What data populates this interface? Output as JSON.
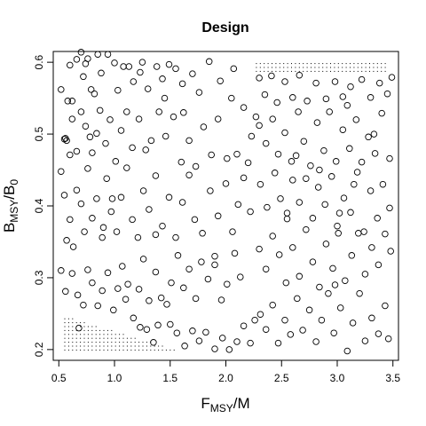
{
  "chart_data": {
    "type": "scatter",
    "title": "Design",
    "xlabel": {
      "main": "F",
      "sub": "MSY",
      "rest": "/M"
    },
    "ylabel": {
      "main": "B",
      "sub": "MSY",
      "mid": "/B",
      "sub2": "0"
    },
    "xlim": [
      0.45,
      3.55
    ],
    "ylim": [
      0.185,
      0.615
    ],
    "x_ticks": [
      0.5,
      1.0,
      1.5,
      2.0,
      2.5,
      3.0,
      3.5
    ],
    "x_tick_labels": [
      "0.5",
      "1.0",
      "1.5",
      "2.0",
      "2.5",
      "3.0",
      "3.5"
    ],
    "y_ticks": [
      0.2,
      0.3,
      0.4,
      0.5,
      0.6
    ],
    "y_tick_labels": [
      "0.2",
      "0.3",
      "0.4",
      "0.5",
      "0.6"
    ],
    "grid": false,
    "legend": "none",
    "marker_color": "#000000",
    "points": [
      [
        0.52,
        0.562
      ],
      [
        0.55,
        0.493
      ],
      [
        0.56,
        0.494
      ],
      [
        0.58,
        0.546
      ],
      [
        0.6,
        0.596
      ],
      [
        0.62,
        0.546
      ],
      [
        0.66,
        0.604
      ],
      [
        0.7,
        0.614
      ],
      [
        0.74,
        0.598
      ],
      [
        0.76,
        0.605
      ],
      [
        0.79,
        0.562
      ],
      [
        0.82,
        0.556
      ],
      [
        0.85,
        0.611
      ],
      [
        0.88,
        0.585
      ],
      [
        0.9,
        0.624
      ],
      [
        0.94,
        0.611
      ],
      [
        1.0,
        0.599
      ],
      [
        1.03,
        0.561
      ],
      [
        1.08,
        0.594
      ],
      [
        1.13,
        0.594
      ],
      [
        1.17,
        0.573
      ],
      [
        1.23,
        0.586
      ],
      [
        1.3,
        0.563
      ],
      [
        1.38,
        0.594
      ],
      [
        1.43,
        0.577
      ],
      [
        1.49,
        0.597
      ],
      [
        1.55,
        0.591
      ],
      [
        1.61,
        0.57
      ],
      [
        1.7,
        0.584
      ],
      [
        1.76,
        0.558
      ],
      [
        1.85,
        0.601
      ],
      [
        1.95,
        0.574
      ],
      [
        2.07,
        0.591
      ],
      [
        0.52,
        0.448
      ],
      [
        0.55,
        0.415
      ],
      [
        0.57,
        0.491
      ],
      [
        0.6,
        0.471
      ],
      [
        0.62,
        0.521
      ],
      [
        0.66,
        0.476
      ],
      [
        0.7,
        0.531
      ],
      [
        0.74,
        0.511
      ],
      [
        0.78,
        0.496
      ],
      [
        0.8,
        0.474
      ],
      [
        0.84,
        0.501
      ],
      [
        0.87,
        0.533
      ],
      [
        0.92,
        0.487
      ],
      [
        0.96,
        0.52
      ],
      [
        1.01,
        0.462
      ],
      [
        1.06,
        0.505
      ],
      [
        1.11,
        0.531
      ],
      [
        1.16,
        0.481
      ],
      [
        1.22,
        0.521
      ],
      [
        1.28,
        0.478
      ],
      [
        1.33,
        0.491
      ],
      [
        1.4,
        0.531
      ],
      [
        1.46,
        0.497
      ],
      [
        1.53,
        0.524
      ],
      [
        1.6,
        0.461
      ],
      [
        1.67,
        0.491
      ],
      [
        1.73,
        0.455
      ],
      [
        1.8,
        0.51
      ],
      [
        1.87,
        0.471
      ],
      [
        1.93,
        0.521
      ],
      [
        2.01,
        0.466
      ],
      [
        2.1,
        0.472
      ],
      [
        2.16,
        0.537
      ],
      [
        2.23,
        0.497
      ],
      [
        2.27,
        0.524
      ],
      [
        0.57,
        0.352
      ],
      [
        0.6,
        0.381
      ],
      [
        0.63,
        0.343
      ],
      [
        0.66,
        0.422
      ],
      [
        0.7,
        0.403
      ],
      [
        0.73,
        0.364
      ],
      [
        0.76,
        0.452
      ],
      [
        0.8,
        0.383
      ],
      [
        0.84,
        0.41
      ],
      [
        0.89,
        0.356
      ],
      [
        0.93,
        0.438
      ],
      [
        0.97,
        0.392
      ],
      [
        1.02,
        0.364
      ],
      [
        1.06,
        0.412
      ],
      [
        1.11,
        0.453
      ],
      [
        1.16,
        0.381
      ],
      [
        1.21,
        0.356
      ],
      [
        1.26,
        0.421
      ],
      [
        1.31,
        0.395
      ],
      [
        1.37,
        0.442
      ],
      [
        1.43,
        0.372
      ],
      [
        1.49,
        0.412
      ],
      [
        1.55,
        0.356
      ],
      [
        1.61,
        0.405
      ],
      [
        1.67,
        0.443
      ],
      [
        1.72,
        0.381
      ],
      [
        1.79,
        0.362
      ],
      [
        1.86,
        0.421
      ],
      [
        1.93,
        0.386
      ],
      [
        2.0,
        0.431
      ],
      [
        2.06,
        0.364
      ],
      [
        2.11,
        0.402
      ],
      [
        2.16,
        0.439
      ],
      [
        2.22,
        0.392
      ],
      [
        0.52,
        0.31
      ],
      [
        0.56,
        0.281
      ],
      [
        0.62,
        0.306
      ],
      [
        0.67,
        0.276
      ],
      [
        0.72,
        0.262
      ],
      [
        0.76,
        0.311
      ],
      [
        0.8,
        0.293
      ],
      [
        0.85,
        0.261
      ],
      [
        0.89,
        0.282
      ],
      [
        0.94,
        0.307
      ],
      [
        0.99,
        0.255
      ],
      [
        1.03,
        0.285
      ],
      [
        1.07,
        0.316
      ],
      [
        1.12,
        0.291
      ],
      [
        1.17,
        0.244
      ],
      [
        1.22,
        0.284
      ],
      [
        1.26,
        0.326
      ],
      [
        1.31,
        0.268
      ],
      [
        1.37,
        0.308
      ],
      [
        1.42,
        0.272
      ],
      [
        1.47,
        0.263
      ],
      [
        1.51,
        0.293
      ],
      [
        1.57,
        0.331
      ],
      [
        1.62,
        0.286
      ],
      [
        1.67,
        0.312
      ],
      [
        1.73,
        0.271
      ],
      [
        1.78,
        0.322
      ],
      [
        1.84,
        0.298
      ],
      [
        1.9,
        0.318
      ],
      [
        1.96,
        0.269
      ],
      [
        2.01,
        0.291
      ],
      [
        2.08,
        0.334
      ],
      [
        2.13,
        0.301
      ],
      [
        1.23,
        0.231
      ],
      [
        1.29,
        0.228
      ],
      [
        1.35,
        0.21
      ],
      [
        1.39,
        0.234
      ],
      [
        1.5,
        0.235
      ],
      [
        1.56,
        0.223
      ],
      [
        1.63,
        0.205
      ],
      [
        1.7,
        0.226
      ],
      [
        1.76,
        0.212
      ],
      [
        1.82,
        0.224
      ],
      [
        1.9,
        0.201
      ],
      [
        1.97,
        0.216
      ],
      [
        2.03,
        0.2
      ],
      [
        2.1,
        0.211
      ],
      [
        2.16,
        0.233
      ],
      [
        2.22,
        0.209
      ],
      [
        2.26,
        0.241
      ],
      [
        2.3,
        0.578
      ],
      [
        2.35,
        0.555
      ],
      [
        2.41,
        0.581
      ],
      [
        2.46,
        0.544
      ],
      [
        2.53,
        0.573
      ],
      [
        2.6,
        0.551
      ],
      [
        2.66,
        0.582
      ],
      [
        2.73,
        0.546
      ],
      [
        2.81,
        0.571
      ],
      [
        2.9,
        0.549
      ],
      [
        2.98,
        0.573
      ],
      [
        3.05,
        0.552
      ],
      [
        3.12,
        0.566
      ],
      [
        3.22,
        0.576
      ],
      [
        3.3,
        0.551
      ],
      [
        3.38,
        0.571
      ],
      [
        3.45,
        0.556
      ],
      [
        3.49,
        0.579
      ],
      [
        2.3,
        0.512
      ],
      [
        2.36,
        0.487
      ],
      [
        2.42,
        0.521
      ],
      [
        2.47,
        0.472
      ],
      [
        2.53,
        0.502
      ],
      [
        2.59,
        0.462
      ],
      [
        2.65,
        0.531
      ],
      [
        2.7,
        0.49
      ],
      [
        2.76,
        0.456
      ],
      [
        2.82,
        0.516
      ],
      [
        2.88,
        0.477
      ],
      [
        2.93,
        0.531
      ],
      [
        2.99,
        0.462
      ],
      [
        3.05,
        0.506
      ],
      [
        3.11,
        0.48
      ],
      [
        3.17,
        0.52
      ],
      [
        3.22,
        0.461
      ],
      [
        3.28,
        0.496
      ],
      [
        3.34,
        0.473
      ],
      [
        3.4,
        0.529
      ],
      [
        3.47,
        0.466
      ],
      [
        2.31,
        0.43
      ],
      [
        2.37,
        0.398
      ],
      [
        2.44,
        0.446
      ],
      [
        2.49,
        0.41
      ],
      [
        2.55,
        0.382
      ],
      [
        2.6,
        0.436
      ],
      [
        2.66,
        0.405
      ],
      [
        2.72,
        0.438
      ],
      [
        2.78,
        0.383
      ],
      [
        2.83,
        0.426
      ],
      [
        2.89,
        0.402
      ],
      [
        2.95,
        0.441
      ],
      [
        3.0,
        0.372
      ],
      [
        3.06,
        0.411
      ],
      [
        3.12,
        0.391
      ],
      [
        3.18,
        0.447
      ],
      [
        3.24,
        0.364
      ],
      [
        3.3,
        0.421
      ],
      [
        3.36,
        0.383
      ],
      [
        3.41,
        0.43
      ],
      [
        3.47,
        0.397
      ],
      [
        2.3,
        0.34
      ],
      [
        2.36,
        0.312
      ],
      [
        2.42,
        0.358
      ],
      [
        2.48,
        0.332
      ],
      [
        2.54,
        0.293
      ],
      [
        2.6,
        0.342
      ],
      [
        2.66,
        0.302
      ],
      [
        2.72,
        0.367
      ],
      [
        2.78,
        0.322
      ],
      [
        2.84,
        0.287
      ],
      [
        2.9,
        0.347
      ],
      [
        2.96,
        0.313
      ],
      [
        3.01,
        0.362
      ],
      [
        3.07,
        0.296
      ],
      [
        3.13,
        0.331
      ],
      [
        3.19,
        0.362
      ],
      [
        3.25,
        0.305
      ],
      [
        3.31,
        0.342
      ],
      [
        3.37,
        0.318
      ],
      [
        3.43,
        0.361
      ],
      [
        3.48,
        0.337
      ],
      [
        2.31,
        0.249
      ],
      [
        2.36,
        0.228
      ],
      [
        2.42,
        0.262
      ],
      [
        2.47,
        0.209
      ],
      [
        2.53,
        0.241
      ],
      [
        2.58,
        0.221
      ],
      [
        2.64,
        0.271
      ],
      [
        2.69,
        0.227
      ],
      [
        2.75,
        0.255
      ],
      [
        2.81,
        0.211
      ],
      [
        2.86,
        0.241
      ],
      [
        2.92,
        0.278
      ],
      [
        2.97,
        0.223
      ],
      [
        3.03,
        0.258
      ],
      [
        3.09,
        0.198
      ],
      [
        3.14,
        0.237
      ],
      [
        3.2,
        0.278
      ],
      [
        3.25,
        0.212
      ],
      [
        3.31,
        0.244
      ],
      [
        3.37,
        0.222
      ],
      [
        3.43,
        0.261
      ],
      [
        3.46,
        0.215
      ],
      [
        0.72,
        0.58
      ],
      [
        1.25,
        0.6
      ],
      [
        2.2,
        0.46
      ],
      [
        2.63,
        0.47
      ],
      [
        3.09,
        0.54
      ],
      [
        0.98,
        0.41
      ],
      [
        1.45,
        0.55
      ],
      [
        1.9,
        0.33
      ],
      [
        2.55,
        0.39
      ],
      [
        3.15,
        0.43
      ],
      [
        0.68,
        0.23
      ],
      [
        1.1,
        0.27
      ],
      [
        1.62,
        0.53
      ],
      [
        2.05,
        0.55
      ],
      [
        2.98,
        0.29
      ],
      [
        3.33,
        0.5
      ],
      [
        0.9,
        0.37
      ],
      [
        1.37,
        0.36
      ],
      [
        2.84,
        0.45
      ],
      [
        3.02,
        0.39
      ]
    ],
    "stipple_regions": [
      {
        "x0": 0.55,
        "x1": 1.55,
        "y0": 0.2,
        "y1": 0.246,
        "corner": "bottom-left"
      },
      {
        "x0": 2.27,
        "x1": 3.45,
        "y0": 0.588,
        "y1": 0.6,
        "corner": "top-right"
      }
    ]
  }
}
